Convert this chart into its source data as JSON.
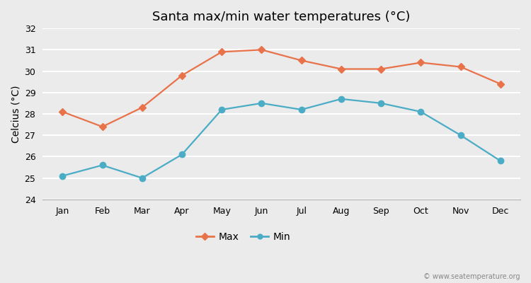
{
  "title": "Santa max/min water temperatures (°C)",
  "ylabel": "Celcius (°C)",
  "months": [
    "Jan",
    "Feb",
    "Mar",
    "Apr",
    "May",
    "Jun",
    "Jul",
    "Aug",
    "Sep",
    "Oct",
    "Nov",
    "Dec"
  ],
  "max_temps": [
    28.1,
    27.4,
    28.3,
    29.8,
    30.9,
    31.0,
    30.5,
    30.1,
    30.1,
    30.4,
    30.2,
    29.4
  ],
  "min_temps": [
    25.1,
    25.6,
    25.0,
    26.1,
    28.2,
    28.5,
    28.2,
    28.7,
    28.5,
    28.1,
    27.0,
    25.8
  ],
  "max_color": "#e8724a",
  "min_color": "#4bacc6",
  "ylim": [
    24,
    32
  ],
  "yticks": [
    24,
    25,
    26,
    27,
    28,
    29,
    30,
    31,
    32
  ],
  "bg_color": "#ebebeb",
  "plot_bg_color": "#ebebeb",
  "grid_color": "#ffffff",
  "legend_labels": [
    "Max",
    "Min"
  ],
  "watermark": "© www.seatemperature.org",
  "title_fontsize": 13,
  "axis_label_fontsize": 10,
  "tick_fontsize": 9,
  "legend_fontsize": 10
}
